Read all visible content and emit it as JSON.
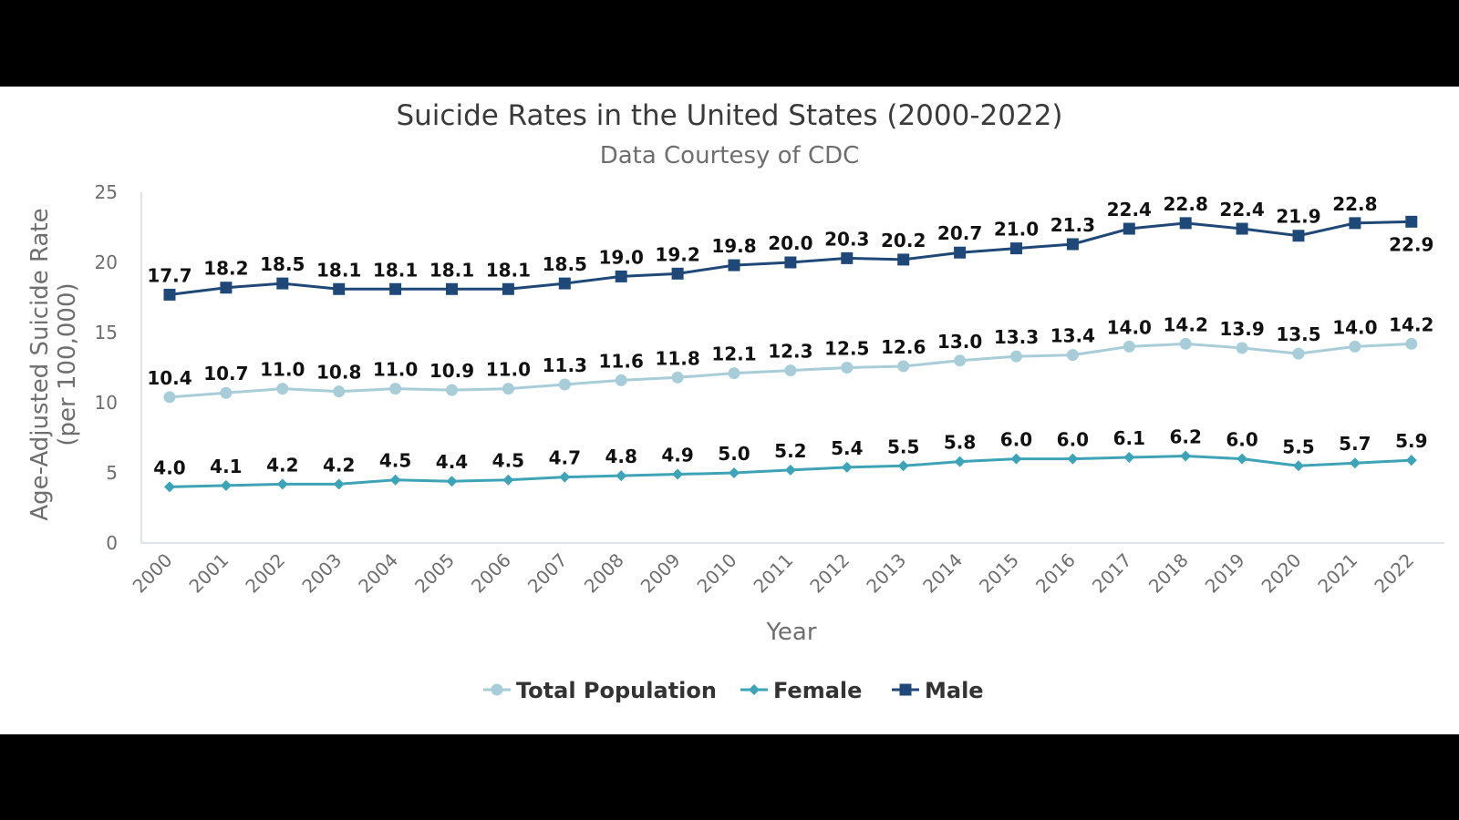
{
  "chart_data": {
    "type": "line",
    "title": "Suicide Rates in the United States (2000-2022)",
    "subtitle": "Data Courtesy of CDC",
    "xlabel": "Year",
    "ylabel_line1": "Age-Adjusted Suicide Rate",
    "ylabel_line2": "(per 100,000)",
    "ylim": [
      0,
      25
    ],
    "yticks": [
      "0",
      "5",
      "10",
      "15",
      "20",
      "25"
    ],
    "categories": [
      "2000",
      "2001",
      "2002",
      "2003",
      "2004",
      "2005",
      "2006",
      "2007",
      "2008",
      "2009",
      "2010",
      "2011",
      "2012",
      "2013",
      "2014",
      "2015",
      "2016",
      "2017",
      "2018",
      "2019",
      "2020",
      "2021",
      "2022"
    ],
    "grid": false,
    "legend_position": "bottom",
    "series": [
      {
        "name": "Total Population",
        "marker": "circle",
        "color": "#a8cdd9",
        "values": [
          10.4,
          10.7,
          11.0,
          10.8,
          11.0,
          10.9,
          11.0,
          11.3,
          11.6,
          11.8,
          12.1,
          12.3,
          12.5,
          12.6,
          13.0,
          13.3,
          13.4,
          14.0,
          14.2,
          13.9,
          13.5,
          14.0,
          14.2
        ],
        "labels": [
          "10.4",
          "10.7",
          "11.0",
          "10.8",
          "11.0",
          "10.9",
          "11.0",
          "11.3",
          "11.6",
          "11.8",
          "12.1",
          "12.3",
          "12.5",
          "12.6",
          "13.0",
          "13.3",
          "13.4",
          "14.0",
          "14.2",
          "13.9",
          "13.5",
          "14.0",
          "14.2"
        ]
      },
      {
        "name": "Female",
        "marker": "diamond",
        "color": "#3fa3b8",
        "values": [
          4.0,
          4.1,
          4.2,
          4.2,
          4.5,
          4.4,
          4.5,
          4.7,
          4.8,
          4.9,
          5.0,
          5.2,
          5.4,
          5.5,
          5.8,
          6.0,
          6.0,
          6.1,
          6.2,
          6.0,
          5.5,
          5.7,
          5.9
        ],
        "labels": [
          "4.0",
          "4.1",
          "4.2",
          "4.2",
          "4.5",
          "4.4",
          "4.5",
          "4.7",
          "4.8",
          "4.9",
          "5.0",
          "5.2",
          "5.4",
          "5.5",
          "5.8",
          "6.0",
          "6.0",
          "6.1",
          "6.2",
          "6.0",
          "5.5",
          "5.7",
          "5.9"
        ]
      },
      {
        "name": "Male",
        "marker": "square",
        "color": "#1f4878",
        "values": [
          17.7,
          18.2,
          18.5,
          18.1,
          18.1,
          18.1,
          18.1,
          18.5,
          19.0,
          19.2,
          19.8,
          20.0,
          20.3,
          20.2,
          20.7,
          21.0,
          21.3,
          22.4,
          22.8,
          22.4,
          21.9,
          22.8,
          22.9
        ],
        "labels": [
          "17.7",
          "18.2",
          "18.5",
          "18.1",
          "18.1",
          "18.1",
          "18.1",
          "18.5",
          "19.0",
          "19.2",
          "19.8",
          "20.0",
          "20.3",
          "20.2",
          "20.7",
          "21.0",
          "21.3",
          "22.4",
          "22.8",
          "22.4",
          "21.9",
          "22.8",
          "22.9"
        ]
      }
    ]
  }
}
